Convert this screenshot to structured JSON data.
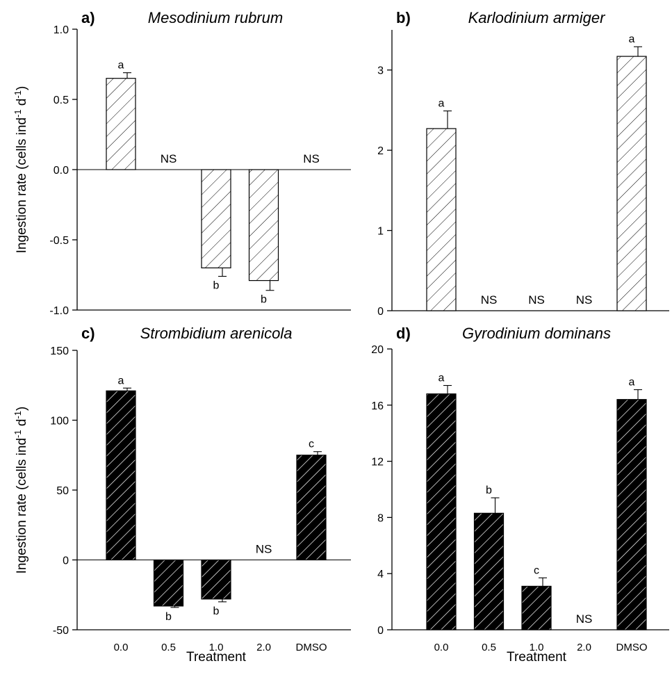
{
  "chart_data": [
    {
      "type": "bar",
      "panel_label": "a)",
      "title": "Mesodinium rubrum",
      "ylabel": "Ingestion rate (cells ind-1 d-1)",
      "xlabel": "",
      "categories": [
        "0.0",
        "0.5",
        "1.0",
        "2.0",
        "DMSO"
      ],
      "show_category_labels": false,
      "values": [
        0.65,
        null,
        -0.7,
        -0.79,
        null
      ],
      "errors": [
        0.04,
        null,
        0.06,
        0.07,
        null
      ],
      "labels": [
        "a",
        "NS",
        "b",
        "b",
        "NS"
      ],
      "ylim": [
        -1.0,
        1.0
      ],
      "yticks": [
        -1.0,
        -0.5,
        0.0,
        0.5,
        1.0
      ],
      "ytick_labels": [
        "-1.0",
        "-0.5",
        "0.0",
        "0.5",
        "1.0"
      ],
      "fill": "hatched-white",
      "grid": false
    },
    {
      "type": "bar",
      "panel_label": "b)",
      "title": "Karlodinium armiger",
      "ylabel": "",
      "xlabel": "",
      "categories": [
        "0.0",
        "0.5",
        "1.0",
        "2.0",
        "DMSO"
      ],
      "show_category_labels": false,
      "values": [
        2.27,
        null,
        null,
        null,
        3.17
      ],
      "errors": [
        0.22,
        null,
        null,
        null,
        0.12
      ],
      "labels": [
        "a",
        "NS",
        "NS",
        "NS",
        "a"
      ],
      "ylim": [
        0,
        3.5
      ],
      "yticks": [
        0,
        1,
        2,
        3
      ],
      "ytick_labels": [
        "0",
        "1",
        "2",
        "3"
      ],
      "fill": "hatched-white",
      "grid": false
    },
    {
      "type": "bar",
      "panel_label": "c)",
      "title": "Strombidium arenicola",
      "ylabel": "Ingestion rate (cells ind-1 d-1)",
      "xlabel": "Treatment",
      "categories": [
        "0.0",
        "0.5",
        "1.0",
        "2.0",
        "DMSO"
      ],
      "show_category_labels": true,
      "values": [
        121,
        -33,
        -28,
        null,
        75
      ],
      "errors": [
        2,
        1,
        2,
        null,
        2.5
      ],
      "labels": [
        "a",
        "b",
        "b",
        "NS",
        "c"
      ],
      "ylim": [
        -50,
        150
      ],
      "yticks": [
        -50,
        0,
        50,
        100,
        150
      ],
      "ytick_labels": [
        "-50",
        "0",
        "50",
        "100",
        "150"
      ],
      "fill": "hatched-black",
      "grid": false
    },
    {
      "type": "bar",
      "panel_label": "d)",
      "title": "Gyrodinium dominans",
      "ylabel": "",
      "xlabel": "Treatment",
      "categories": [
        "0.0",
        "0.5",
        "1.0",
        "2.0",
        "DMSO"
      ],
      "show_category_labels": true,
      "values": [
        16.8,
        8.3,
        3.1,
        null,
        16.4
      ],
      "errors": [
        0.6,
        1.1,
        0.6,
        null,
        0.7
      ],
      "labels": [
        "a",
        "b",
        "c",
        "NS",
        "a"
      ],
      "ylim": [
        0,
        20
      ],
      "yticks": [
        0,
        4,
        8,
        12,
        16,
        20
      ],
      "ytick_labels": [
        "0",
        "4",
        "8",
        "12",
        "16",
        "20"
      ],
      "fill": "hatched-black",
      "grid": false
    }
  ]
}
